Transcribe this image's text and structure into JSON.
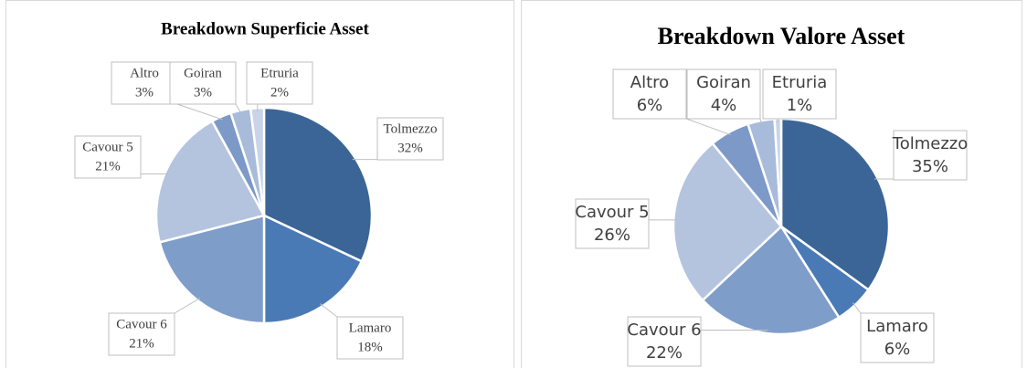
{
  "chart_data": [
    {
      "type": "pie",
      "title": "Breakdown Superficie Asset",
      "categories": [
        "Tolmezzo",
        "Lamaro",
        "Cavour 6",
        "Cavour 5",
        "Altro",
        "Goiran",
        "Etruria"
      ],
      "values": [
        32,
        18,
        21,
        21,
        3,
        3,
        2
      ],
      "value_labels": [
        "32%",
        "18%",
        "21%",
        "21%",
        "3%",
        "3%",
        "2%"
      ],
      "colors": [
        "#3b6596",
        "#4a7ab5",
        "#7f9dc9",
        "#b4c4de",
        "#7d99c8",
        "#a9bbdb",
        "#c9d4e8"
      ]
    },
    {
      "type": "pie",
      "title": "Breakdown Valore Asset",
      "categories": [
        "Tolmezzo",
        "Lamaro",
        "Cavour 6",
        "Cavour 5",
        "Altro",
        "Goiran",
        "Etruria"
      ],
      "values": [
        35,
        6,
        22,
        26,
        6,
        4,
        1
      ],
      "value_labels": [
        "35%",
        "6%",
        "22%",
        "26%",
        "6%",
        "4%",
        "1%"
      ],
      "colors": [
        "#3b6596",
        "#4a7ab5",
        "#7f9dc9",
        "#b4c4de",
        "#7d99c8",
        "#a9bbdb",
        "#c9d4e8"
      ]
    }
  ]
}
